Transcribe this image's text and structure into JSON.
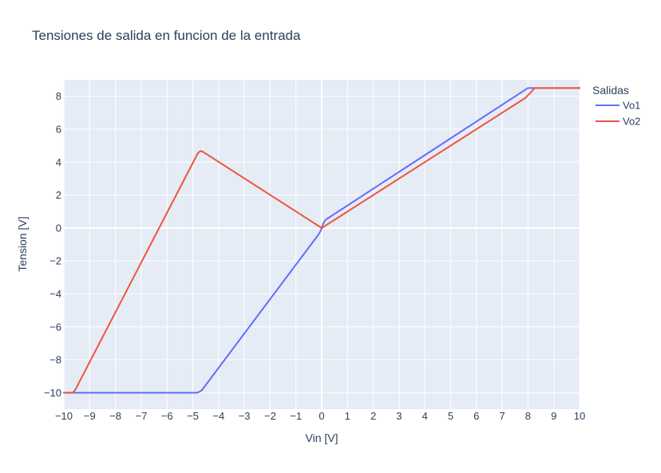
{
  "chart_data": {
    "type": "line",
    "title": "Tensiones de salida en funcion de la entrada",
    "xlabel": "Vin [V]",
    "ylabel": "Tension [V]",
    "xlim": [
      -10,
      10
    ],
    "ylim": [
      -11,
      9
    ],
    "xticks": [
      -10,
      -9,
      -8,
      -7,
      -6,
      -5,
      -4,
      -3,
      -2,
      -1,
      0,
      1,
      2,
      3,
      4,
      5,
      6,
      7,
      8,
      9,
      10
    ],
    "yticks": [
      -10,
      -8,
      -6,
      -4,
      -2,
      0,
      2,
      4,
      6,
      8
    ],
    "grid": true,
    "plot_background": "#e5ecf6",
    "grid_color": "#ffffff",
    "text_color": "#2a3f5f",
    "legend_title": "Salidas",
    "legend_position": "right",
    "series": [
      {
        "name": "Vo1",
        "color": "#636efa",
        "x": [
          -10,
          -4.85,
          -4.75,
          -4.65,
          -0.15,
          -0.05,
          0,
          0.05,
          0.15,
          7.85,
          8.0,
          8.4,
          10
        ],
        "y": [
          -10,
          -10,
          -9.95,
          -9.85,
          -0.45,
          -0.2,
          0,
          0.25,
          0.5,
          8.35,
          8.5,
          8.5,
          8.5
        ]
      },
      {
        "name": "Vo2",
        "color": "#ef553b",
        "x": [
          -10,
          -9.65,
          -9.55,
          -4.8,
          -4.7,
          -4.6,
          0,
          7.9,
          8.15,
          8.25,
          8.35,
          10
        ],
        "y": [
          -10,
          -10,
          -9.8,
          4.55,
          4.68,
          4.62,
          0,
          7.9,
          8.3,
          8.5,
          8.5,
          8.5
        ]
      }
    ]
  }
}
